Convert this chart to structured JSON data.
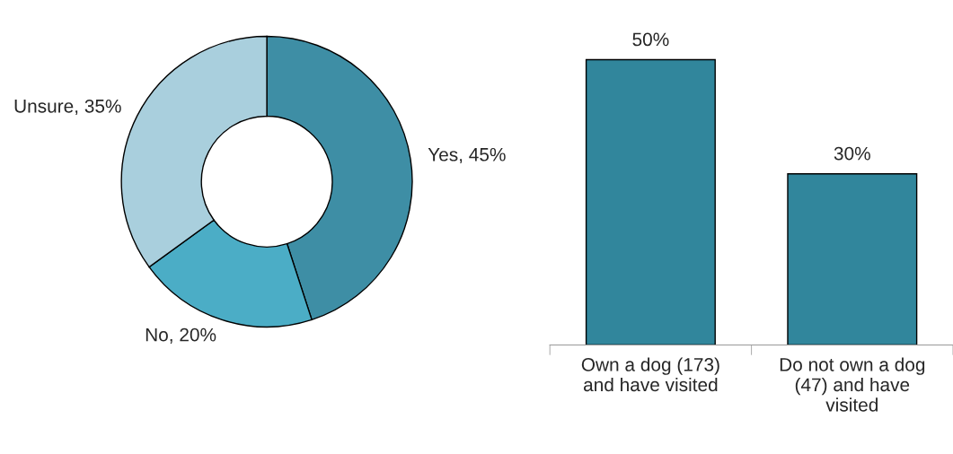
{
  "chart_data": [
    {
      "type": "donut",
      "categories": [
        "Yes",
        "No",
        "Unsure"
      ],
      "values": [
        45,
        20,
        35
      ],
      "colors": [
        "#3e8ea5",
        "#4badc6",
        "#a9cfdd"
      ],
      "value_labels": [
        "45%",
        "20%",
        "35%"
      ]
    },
    {
      "type": "bar",
      "categories": [
        "Own a dog (173)\nand have visited",
        "Do not own a dog\n(47) and have\nvisited"
      ],
      "values": [
        50,
        30
      ],
      "color": "#31869c",
      "value_labels": [
        "50%",
        "30%"
      ]
    }
  ]
}
